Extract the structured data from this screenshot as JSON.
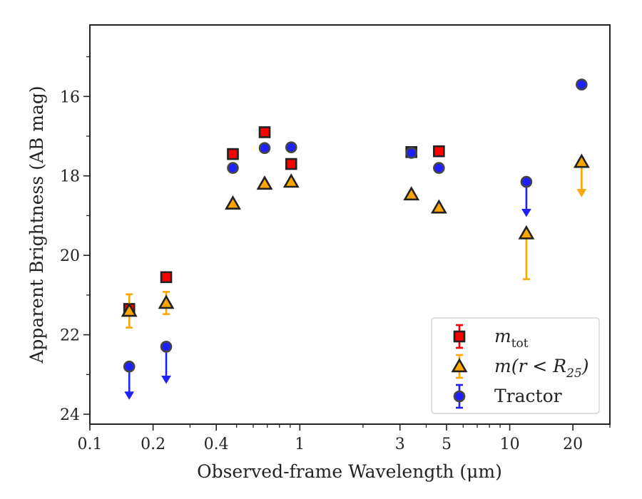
{
  "chart_data": {
    "type": "scatter",
    "title": "",
    "xlabel": "Observed-frame Wavelength (μm)",
    "ylabel": "Apparent Brightness (AB mag)",
    "xscale": "log",
    "xlim": [
      0.1,
      30
    ],
    "ylim": [
      24.25,
      14.2
    ],
    "y_inverted": true,
    "x_ticks": [
      {
        "value": 0.1,
        "label": "0.1"
      },
      {
        "value": 0.2,
        "label": "0.2"
      },
      {
        "value": 0.4,
        "label": "0.4"
      },
      {
        "value": 1,
        "label": "1"
      },
      {
        "value": 3,
        "label": "3"
      },
      {
        "value": 5,
        "label": "5"
      },
      {
        "value": 10,
        "label": "10"
      },
      {
        "value": 20,
        "label": "20"
      }
    ],
    "y_ticks": [
      {
        "value": 16,
        "label": "16"
      },
      {
        "value": 18,
        "label": "18"
      },
      {
        "value": 20,
        "label": "20"
      },
      {
        "value": 22,
        "label": "22"
      },
      {
        "value": 24,
        "label": "24"
      }
    ],
    "legend_position": "bottom-right",
    "series": [
      {
        "name": "m_tot",
        "legend_main": "m",
        "legend_sub": "tot",
        "marker": "square",
        "color": "#ff0000",
        "edge": "#222222",
        "points": [
          {
            "x": 0.154,
            "y": 21.35,
            "yerr": 0.12
          },
          {
            "x": 0.231,
            "y": 20.55,
            "yerr": 0.05
          },
          {
            "x": 0.48,
            "y": 17.45,
            "yerr": 0.03
          },
          {
            "x": 0.68,
            "y": 16.9,
            "yerr": 0.03
          },
          {
            "x": 0.91,
            "y": 17.7,
            "yerr": 0.03
          },
          {
            "x": 3.4,
            "y": 17.4,
            "yerr": 0.03
          },
          {
            "x": 4.6,
            "y": 17.38,
            "yerr": 0.03
          }
        ]
      },
      {
        "name": "m(r < R_25)",
        "legend_main": "m(r < R",
        "legend_sub": "25",
        "legend_end": ")",
        "marker": "triangle",
        "color": "#ffa500",
        "edge": "#222222",
        "points": [
          {
            "x": 0.154,
            "y": 21.4,
            "yerr": 0.42
          },
          {
            "x": 0.231,
            "y": 21.2,
            "yerr": 0.28
          },
          {
            "x": 0.48,
            "y": 18.7,
            "yerr": 0.03
          },
          {
            "x": 0.68,
            "y": 18.2,
            "yerr": 0.03
          },
          {
            "x": 0.91,
            "y": 18.15,
            "yerr": 0.03
          },
          {
            "x": 3.4,
            "y": 18.47,
            "yerr": 0.03
          },
          {
            "x": 4.6,
            "y": 18.8,
            "yerr": 0.03
          },
          {
            "x": 12,
            "y": 19.45,
            "yerr_low": 1.15,
            "yerr_high": 0
          },
          {
            "x": 22,
            "y": 17.65,
            "upper_limit": true,
            "arrow_to": 18.5
          }
        ]
      },
      {
        "name": "Tractor",
        "marker": "circle",
        "color": "#1f1fff",
        "edge": "#444444",
        "points": [
          {
            "x": 0.154,
            "y": 22.8,
            "upper_limit": true,
            "arrow_to": 23.6
          },
          {
            "x": 0.231,
            "y": 22.3,
            "upper_limit": true,
            "arrow_to": 23.2
          },
          {
            "x": 0.48,
            "y": 17.8,
            "yerr": 0.03
          },
          {
            "x": 0.68,
            "y": 17.3,
            "yerr": 0.03
          },
          {
            "x": 0.91,
            "y": 17.28,
            "yerr": 0.03
          },
          {
            "x": 3.4,
            "y": 17.42,
            "yerr": 0.03
          },
          {
            "x": 4.6,
            "y": 17.8,
            "yerr": 0.03
          },
          {
            "x": 12,
            "y": 18.15,
            "upper_limit": true,
            "arrow_to": 19.0
          },
          {
            "x": 22,
            "y": 15.7,
            "yerr": 0.03
          }
        ]
      }
    ]
  }
}
